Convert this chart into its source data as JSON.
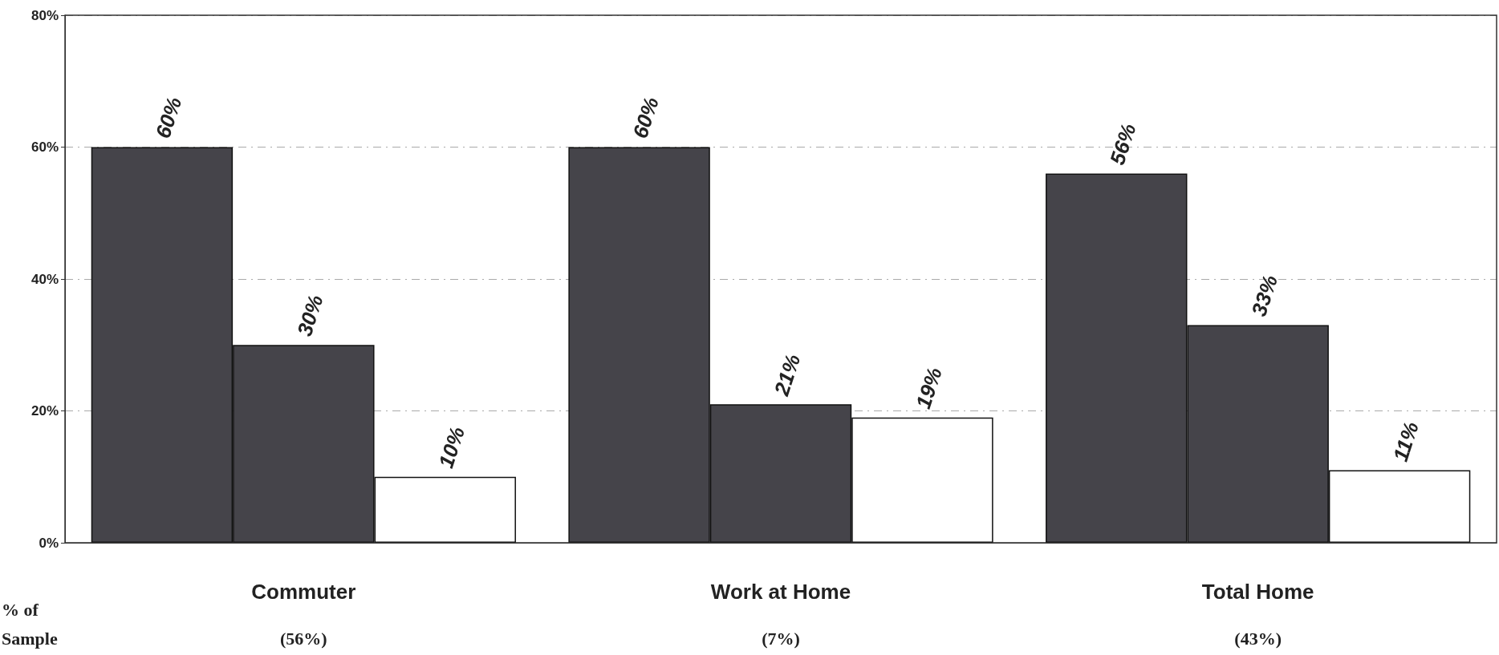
{
  "chart_data": {
    "type": "bar",
    "categories": [
      "Commuter",
      "Work at Home",
      "Total Home"
    ],
    "series": [
      {
        "color": "#45444a",
        "values": [
          60,
          60,
          56
        ],
        "value_labels": [
          "60%",
          "60%",
          "56%"
        ]
      },
      {
        "color": "#45444a",
        "values": [
          30,
          21,
          33
        ],
        "value_labels": [
          "30%",
          "21%",
          "33%"
        ]
      },
      {
        "color": "#ffffff",
        "values": [
          10,
          19,
          11
        ],
        "value_labels": [
          "10%",
          "19%",
          "11%"
        ]
      }
    ],
    "ylim": [
      0,
      80
    ],
    "yticks": [
      {
        "value": 0,
        "label": "0%"
      },
      {
        "value": 20,
        "label": "20%"
      },
      {
        "value": 40,
        "label": "40%"
      },
      {
        "value": 60,
        "label": "60%"
      },
      {
        "value": 80,
        "label": "80%"
      }
    ],
    "grid": "y",
    "annotations": [
      "% of Sample",
      "(56%)",
      "(7%)",
      "(43%)"
    ]
  }
}
